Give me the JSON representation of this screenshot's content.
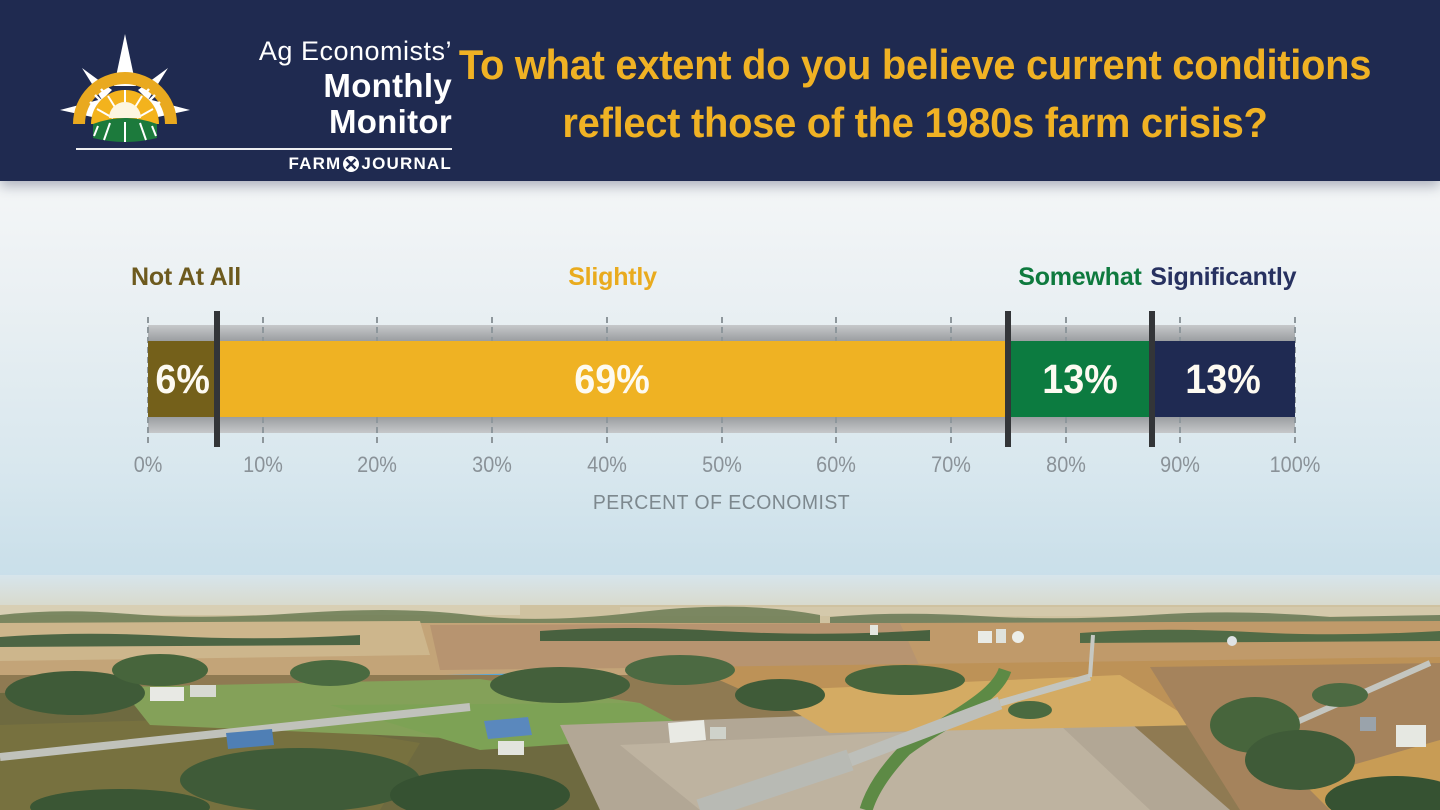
{
  "header": {
    "logo": {
      "line1": "Ag Economists’",
      "line2": "Monthly",
      "line3": "Monitor",
      "brand_left": "FARM",
      "brand_right": "JOURNAL"
    },
    "title_line1": "To what extent do you believe current conditions",
    "title_line2": "reflect those of the 1980s farm crisis?",
    "colors": {
      "band": "#1f2a50",
      "title": "#f0b224"
    }
  },
  "chart_data": {
    "type": "bar",
    "variant": "horizontal-stacked-percent",
    "title": "To what extent do you believe current conditions reflect those of the 1980s farm crisis?",
    "categories": [
      "Not At All",
      "Slightly",
      "Somewhat",
      "Significantly"
    ],
    "values": [
      6,
      69,
      13,
      13
    ],
    "segments": [
      {
        "label": "Not At All",
        "value": 6,
        "value_label": "6%",
        "width_pct": 6,
        "color": "#74601a",
        "label_color": "#6d5a1e",
        "label_align": "left"
      },
      {
        "label": "Slightly",
        "value": 69,
        "value_label": "69%",
        "width_pct": 69,
        "color": "#efb223",
        "label_color": "#e9ab1e",
        "label_align": "center"
      },
      {
        "label": "Somewhat",
        "value": 13,
        "value_label": "13%",
        "width_pct": 12.5,
        "color": "#0c7b40",
        "label_color": "#0e7a3e",
        "label_align": "center"
      },
      {
        "label": "Significantly",
        "value": 13,
        "value_label": "13%",
        "width_pct": 12.5,
        "color": "#1f2a52",
        "label_color": "#273160",
        "label_align": "center"
      }
    ],
    "x_ticks": [
      "0%",
      "10%",
      "20%",
      "30%",
      "40%",
      "50%",
      "60%",
      "70%",
      "80%",
      "90%",
      "100%"
    ],
    "xlim": [
      0,
      100
    ],
    "xlabel": "PERCENT OF ECONOMIST",
    "grid": "dashed-vertical-ticks",
    "legend": "category-labels-above-segments",
    "track_color": "silver-gradient",
    "divider_color": "#333538"
  }
}
